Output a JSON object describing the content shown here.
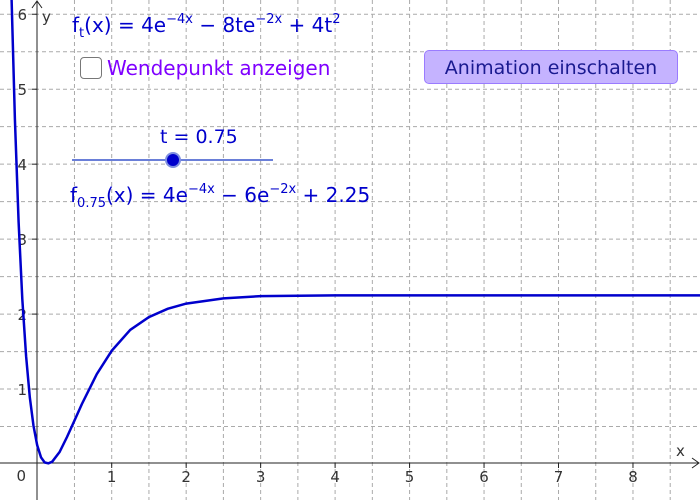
{
  "axes": {
    "x_label": "x",
    "y_label": "y",
    "xlim": [
      -0.5,
      8.9
    ],
    "ylim": [
      -0.48,
      6.19
    ],
    "xticks": [
      0,
      1,
      2,
      3,
      4,
      5,
      6,
      7,
      8
    ],
    "yticks": [
      1,
      2,
      3,
      4,
      5,
      6
    ],
    "x_grid": [
      0.5,
      1,
      1.5,
      2,
      2.5,
      3,
      3.5,
      4,
      4.5,
      5,
      5.5,
      6,
      6.5,
      7,
      7.5,
      8,
      8.5
    ],
    "y_grid": [
      0.5,
      1,
      1.5,
      2,
      2.5,
      3,
      3.5,
      4,
      4.5,
      5,
      5.5,
      6
    ]
  },
  "formula_general": [
    {
      "text": "f",
      "pos": "base"
    },
    {
      "text": "t",
      "pos": "sub"
    },
    {
      "text": "(x) = 4e",
      "pos": "base"
    },
    {
      "text": "−4x",
      "pos": "sup"
    },
    {
      "text": " − 8te",
      "pos": "base"
    },
    {
      "text": "−2x",
      "pos": "sup"
    },
    {
      "text": " + 4t",
      "pos": "base"
    },
    {
      "text": "2",
      "pos": "sup"
    }
  ],
  "checkbox": {
    "label": "Wendepunkt anzeigen",
    "checked": false
  },
  "button": {
    "label": "Animation einschalten"
  },
  "slider": {
    "label": "t = 0.75"
  },
  "formula_specific": [
    {
      "text": "f",
      "pos": "base"
    },
    {
      "text": "0.75",
      "pos": "sub"
    },
    {
      "text": "(x) = 4e",
      "pos": "base"
    },
    {
      "text": "−4x",
      "pos": "sup"
    },
    {
      "text": " − 6e",
      "pos": "base"
    },
    {
      "text": "−2x",
      "pos": "sup"
    },
    {
      "text": " + 2.25",
      "pos": "base"
    }
  ],
  "curve": {
    "color": "#0000cc",
    "x": [
      -0.35,
      -0.3,
      -0.25,
      -0.2,
      -0.15,
      -0.1,
      -0.05,
      0,
      0.05,
      0.1,
      0.15,
      0.2,
      0.3,
      0.4,
      0.5,
      0.6,
      0.8,
      1.0,
      1.25,
      1.5,
      1.75,
      2,
      2.5,
      3,
      4,
      8.9
    ],
    "y": [
      6.39,
      4.6,
      3.23,
      2.2,
      1.44,
      0.89,
      0.51,
      0.25,
      0.09,
      0.02,
      0.01,
      0.03,
      0.16,
      0.36,
      0.58,
      0.8,
      1.2,
      1.51,
      1.79,
      1.96,
      2.07,
      2.14,
      2.21,
      2.24,
      2.25,
      2.25
    ]
  }
}
